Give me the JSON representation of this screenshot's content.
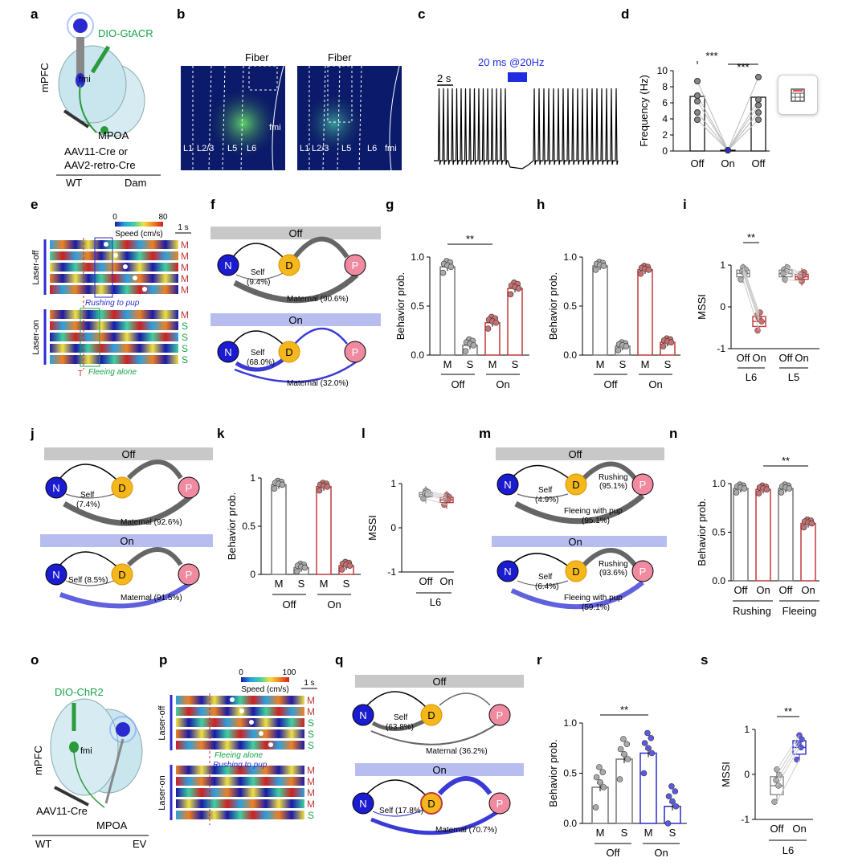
{
  "labels": {
    "a": "a",
    "b": "b",
    "c": "c",
    "d": "d",
    "e": "e",
    "f": "f",
    "g": "g",
    "h": "h",
    "i": "i",
    "j": "j",
    "k": "k",
    "l": "l",
    "m": "m",
    "n": "n",
    "o": "o",
    "p": "p",
    "q": "q",
    "r": "r",
    "s": "s"
  },
  "colors": {
    "maternal": "#808080",
    "self_on": "#3a3ad6",
    "D": "#f5b81c",
    "N": "#1b1bd0",
    "P": "#f08aa0",
    "bar_on_red": "#c0393b",
    "bar_on_blue": "#2b2bd0",
    "banner_off": "#c8c8c8",
    "banner_on": "#b8bdf0"
  },
  "panel_a": {
    "virus": "DIO-GtACR",
    "mpfc": "mPFC",
    "fmi": "fmi",
    "mpoa": "MPOA",
    "aav1": "AAV11-Cre or",
    "aav2": "AAV2-retro-Cre",
    "wt": "WT",
    "dam": "Dam"
  },
  "panel_b": {
    "fiber1": "Fiber",
    "fiber2": "Fiber",
    "layers1": [
      "L1",
      "L2/3",
      "L5",
      "L6",
      "fmi"
    ],
    "layers2": [
      "L1",
      "L2/3",
      "L5",
      "L6",
      "fmi"
    ]
  },
  "panel_c": {
    "stim": "20 ms @20Hz",
    "scale": "2 s"
  },
  "panel_d": {
    "ylabel": "Frequency (Hz)",
    "sig1": "***",
    "sig2": "***"
  },
  "panel_e": {
    "scale_min": "0",
    "scale_max": "80",
    "scale_title": "Speed (cm/s)",
    "time": "1 s",
    "off_label": "Laser-off",
    "on_label": "Laser-on",
    "rushing": "Rushing to pup",
    "fleeing": "Fleeing alone",
    "t": "T",
    "off_rows": [
      "M",
      "M",
      "M",
      "M",
      "M"
    ],
    "on_rows": [
      "M",
      "S",
      "S",
      "S",
      "S"
    ]
  },
  "panel_f": {
    "off": "Off",
    "on": "On",
    "N": "N",
    "D": "D",
    "P": "P",
    "self_off": "Self",
    "self_off_pct": "(9.4%)",
    "mat_off": "Maternal (90.6%)",
    "self_on": "Self",
    "self_on_pct": "(68.0%)",
    "mat_on": "Maternal (32.0%)"
  },
  "panel_g": {
    "ylabel": "Behavior prob.",
    "sig": "**",
    "groups": [
      "Off",
      "On"
    ]
  },
  "panel_h": {
    "ylabel": "Behavior prob.",
    "groups": [
      "Off",
      "On"
    ]
  },
  "panel_i": {
    "ylabel": "MSSI",
    "sig": "**",
    "ticks": [
      "Off",
      "On",
      "Off",
      "On"
    ],
    "groups": [
      "L6",
      "L5"
    ]
  },
  "panel_j": {
    "off": "Off",
    "on": "On",
    "N": "N",
    "D": "D",
    "P": "P",
    "self_off": "Self",
    "self_off_pct": "(7.4%)",
    "mat_off": "Maternal (92.6%)",
    "self_on": "Self (8.5%)",
    "mat_on": "Maternal (91.5%)"
  },
  "panel_k": {
    "ylabel": "Behavior prob.",
    "groups": [
      "Off",
      "On"
    ]
  },
  "panel_l": {
    "ylabel": "MSSI",
    "ticks": [
      "Off",
      "On"
    ],
    "group": "L6"
  },
  "panel_m": {
    "off": "Off",
    "on": "On",
    "N": "N",
    "D": "D",
    "P": "P",
    "self_off": "Self",
    "self_off_pct": "(4.9%)",
    "rush_off": "Rushing",
    "rush_off_pct": "(95.1%)",
    "flee_off": "Fleeing with pup",
    "flee_off_pct": "(95.1%)",
    "self_on": "Self",
    "self_on_pct": "(6.4%)",
    "rush_on": "Rushing",
    "rush_on_pct": "(93.6%)",
    "flee_on": "Fleeing with pup",
    "flee_on_pct": "(59.1%)"
  },
  "panel_n": {
    "ylabel": "Behavior prob.",
    "sig": "**",
    "ticks": [
      "Off",
      "On",
      "Off",
      "On"
    ],
    "groups": [
      "Rushing",
      "Fleeing"
    ]
  },
  "panel_o": {
    "virus": "DIO-ChR2",
    "mpfc": "mPFC",
    "fmi": "fmi",
    "aav": "AAV11-Cre",
    "mpoa": "MPOA",
    "wt": "WT",
    "ev": "EV"
  },
  "panel_p": {
    "scale_min": "0",
    "scale_max": "100",
    "scale_title": "Speed (cm/s)",
    "time": "1 s",
    "off_label": "Laser-off",
    "on_label": "Laser-on",
    "fleeing": "Fleeing alone",
    "rushing": "Rushing to pup",
    "off_rows": [
      "M",
      "M",
      "S",
      "S",
      "S"
    ],
    "on_rows": [
      "M",
      "M",
      "M",
      "M",
      "S"
    ]
  },
  "panel_q": {
    "off": "Off",
    "on": "On",
    "N": "N",
    "D": "D",
    "P": "P",
    "self_off": "Self",
    "self_off_pct": "(63.8%)",
    "mat_off": "Maternal (36.2%)",
    "self_on": "Self (17.8%)",
    "mat_on": "Maternal (70.7%)"
  },
  "panel_r": {
    "ylabel": "Behavior prob.",
    "sig": "**",
    "groups": [
      "Off",
      "On"
    ]
  },
  "panel_s": {
    "ylabel": "MSSI",
    "sig": "**",
    "ticks": [
      "Off",
      "On"
    ],
    "group": "L6"
  },
  "toolbar": {
    "icon": "table-view-icon"
  },
  "chart_data": [
    {
      "id": "d",
      "type": "bar",
      "categories": [
        "Off",
        "On",
        "Off"
      ],
      "values": [
        6.8,
        0.1,
        6.7
      ],
      "ylim": [
        0,
        10
      ],
      "yticks": [
        0,
        2,
        4,
        6,
        8,
        10
      ],
      "ylabel": "Frequency (Hz)",
      "color": "#888888"
    },
    {
      "id": "g",
      "type": "bar",
      "categories": [
        "M",
        "S",
        "M",
        "S"
      ],
      "values": [
        0.9,
        0.1,
        0.33,
        0.68
      ],
      "groups": [
        "Off",
        "Off",
        "On",
        "On"
      ],
      "ylim": [
        0,
        1
      ],
      "yticks": [
        0,
        0.5,
        1.0
      ],
      "ylabel": "Behavior prob."
    },
    {
      "id": "h",
      "type": "bar",
      "categories": [
        "M",
        "S",
        "M",
        "S"
      ],
      "values": [
        0.91,
        0.09,
        0.87,
        0.13
      ],
      "groups": [
        "Off",
        "Off",
        "On",
        "On"
      ],
      "ylim": [
        0,
        1
      ],
      "yticks": [
        0,
        0.5,
        1.0
      ],
      "ylabel": "Behavior prob."
    },
    {
      "id": "i",
      "type": "box",
      "categories": [
        "Off",
        "On",
        "Off",
        "On"
      ],
      "values": [
        0.8,
        -0.35,
        0.8,
        0.72
      ],
      "groups": [
        "L6",
        "L6",
        "L5",
        "L5"
      ],
      "ylim": [
        -1,
        1
      ],
      "yticks": [
        -1,
        0,
        1
      ],
      "ylabel": "MSSI"
    },
    {
      "id": "k",
      "type": "bar",
      "categories": [
        "M",
        "S",
        "M",
        "S"
      ],
      "values": [
        0.93,
        0.07,
        0.91,
        0.09
      ],
      "groups": [
        "Off",
        "Off",
        "On",
        "On"
      ],
      "ylim": [
        0,
        1
      ],
      "yticks": [
        0,
        0.5,
        1
      ],
      "ylabel": "Behavior prob."
    },
    {
      "id": "l",
      "type": "box",
      "categories": [
        "Off",
        "On"
      ],
      "values": [
        0.75,
        0.63
      ],
      "group": "L6",
      "ylim": [
        -1,
        1
      ],
      "yticks": [
        -1,
        0,
        1
      ],
      "ylabel": "MSSI"
    },
    {
      "id": "n",
      "type": "bar",
      "categories": [
        "Off",
        "On",
        "Off",
        "On"
      ],
      "values": [
        0.95,
        0.94,
        0.95,
        0.59
      ],
      "groups": [
        "Rushing",
        "Rushing",
        "Fleeing",
        "Fleeing"
      ],
      "ylim": [
        0,
        1
      ],
      "yticks": [
        0,
        0.5,
        1.0
      ],
      "ylabel": "Behavior prob."
    },
    {
      "id": "r",
      "type": "bar",
      "categories": [
        "M",
        "S",
        "M",
        "S"
      ],
      "values": [
        0.36,
        0.64,
        0.7,
        0.17
      ],
      "groups": [
        "Off",
        "Off",
        "On",
        "On"
      ],
      "ylim": [
        0,
        1
      ],
      "yticks": [
        0,
        0.5,
        1.0
      ],
      "ylabel": "Behavior prob."
    },
    {
      "id": "s",
      "type": "box",
      "categories": [
        "Off",
        "On"
      ],
      "values": [
        -0.25,
        0.6
      ],
      "group": "L6",
      "ylim": [
        -1,
        1
      ],
      "yticks": [
        -1,
        0,
        1
      ],
      "ylabel": "MSSI"
    }
  ]
}
